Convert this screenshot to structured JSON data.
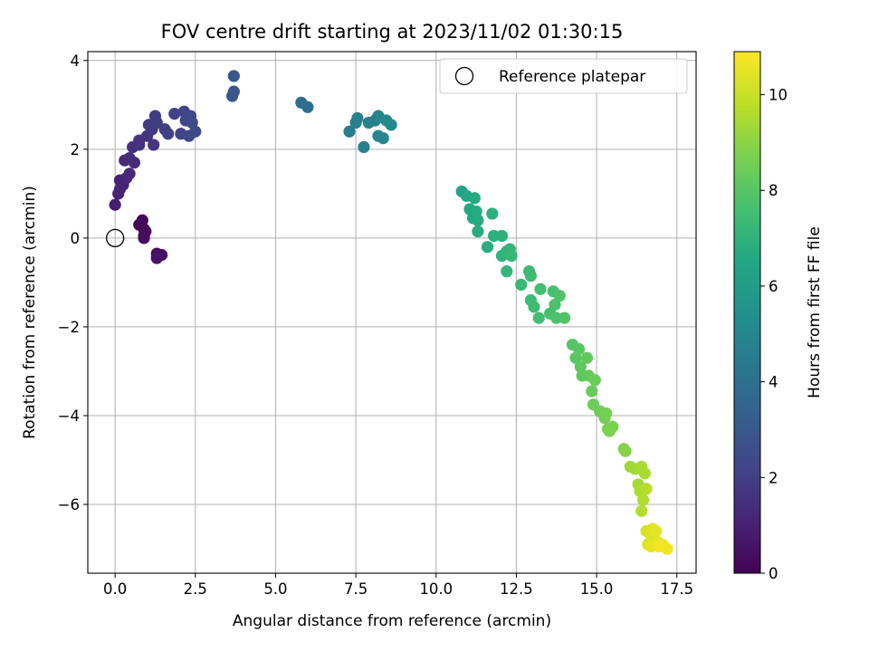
{
  "chart_data": {
    "type": "scatter",
    "title": "FOV centre drift starting at 2023/11/02 01:30:15",
    "xlabel": "Angular distance from reference (arcmin)",
    "ylabel": "Rotation from reference (arcmin)",
    "xlim": [
      -0.85,
      18.1
    ],
    "ylim": [
      -7.55,
      4.2
    ],
    "xticks": [
      0.0,
      2.5,
      5.0,
      7.5,
      10.0,
      12.5,
      15.0,
      17.5
    ],
    "xtick_labels": [
      "0.0",
      "2.5",
      "5.0",
      "7.5",
      "10.0",
      "12.5",
      "15.0",
      "17.5"
    ],
    "yticks": [
      -6,
      -4,
      -2,
      0,
      2,
      4
    ],
    "ytick_labels": [
      "−6",
      "−4",
      "−2",
      "0",
      "2",
      "4"
    ],
    "grid": true,
    "colorbar": {
      "label": "Hours from first FF file",
      "colormap": "viridis",
      "range": [
        0,
        10.9
      ],
      "ticks": [
        0,
        2,
        4,
        6,
        8,
        10
      ],
      "tick_labels": [
        "0",
        "2",
        "4",
        "6",
        "8",
        "10"
      ]
    },
    "legend": {
      "position": "top-right",
      "entries": [
        "Reference platepar"
      ]
    },
    "reference_point": {
      "x": 0.0,
      "y": 0.0
    },
    "points": [
      [
        0.9,
        0.2,
        0.1
      ],
      [
        0.85,
        0.4,
        0.15
      ],
      [
        0.9,
        0.05,
        0.2
      ],
      [
        0.75,
        0.3,
        0.25
      ],
      [
        0.95,
        0.15,
        0.3
      ],
      [
        0.9,
        0.0,
        0.35
      ],
      [
        1.3,
        -0.35,
        0.4
      ],
      [
        1.35,
        -0.4,
        0.45
      ],
      [
        1.45,
        -0.38,
        0.5
      ],
      [
        1.3,
        -0.45,
        0.55
      ],
      [
        0.0,
        0.75,
        0.9
      ],
      [
        0.1,
        1.0,
        1.0
      ],
      [
        0.15,
        1.3,
        1.05
      ],
      [
        0.25,
        1.2,
        1.1
      ],
      [
        0.15,
        1.1,
        1.15
      ],
      [
        0.35,
        1.35,
        1.2
      ],
      [
        0.45,
        1.45,
        1.25
      ],
      [
        0.3,
        1.75,
        1.3
      ],
      [
        0.45,
        1.8,
        1.35
      ],
      [
        0.6,
        1.7,
        1.4
      ],
      [
        0.55,
        2.05,
        1.5
      ],
      [
        0.75,
        2.1,
        1.55
      ],
      [
        0.75,
        2.2,
        1.6
      ],
      [
        1.0,
        2.3,
        1.65
      ],
      [
        1.2,
        2.1,
        1.7
      ],
      [
        1.15,
        2.45,
        1.8
      ],
      [
        1.05,
        2.55,
        1.85
      ],
      [
        1.25,
        2.75,
        1.9
      ],
      [
        1.3,
        2.6,
        1.95
      ],
      [
        1.55,
        2.45,
        2.0
      ],
      [
        1.65,
        2.35,
        2.05
      ],
      [
        1.85,
        2.8,
        2.1
      ],
      [
        2.05,
        2.35,
        2.15
      ],
      [
        2.15,
        2.85,
        2.2
      ],
      [
        2.2,
        2.65,
        2.3
      ],
      [
        2.35,
        2.75,
        2.35
      ],
      [
        2.3,
        2.3,
        2.4
      ],
      [
        2.5,
        2.4,
        2.45
      ],
      [
        2.4,
        2.6,
        2.5
      ],
      [
        3.65,
        3.2,
        2.9
      ],
      [
        3.7,
        3.3,
        2.95
      ],
      [
        3.7,
        3.65,
        3.0
      ],
      [
        5.8,
        3.05,
        3.9
      ],
      [
        6.0,
        2.95,
        3.95
      ],
      [
        7.3,
        2.4,
        4.6
      ],
      [
        7.5,
        2.6,
        4.65
      ],
      [
        7.55,
        2.7,
        4.7
      ],
      [
        7.75,
        2.05,
        4.75
      ],
      [
        7.9,
        2.6,
        4.8
      ],
      [
        8.1,
        2.65,
        4.85
      ],
      [
        8.2,
        2.75,
        4.9
      ],
      [
        8.2,
        2.3,
        4.95
      ],
      [
        8.35,
        2.25,
        5.0
      ],
      [
        8.45,
        2.65,
        5.05
      ],
      [
        8.6,
        2.55,
        5.1
      ],
      [
        10.8,
        1.05,
        6.4
      ],
      [
        10.95,
        0.95,
        6.45
      ],
      [
        11.05,
        0.65,
        6.5
      ],
      [
        11.15,
        0.45,
        6.55
      ],
      [
        11.2,
        0.9,
        6.6
      ],
      [
        11.25,
        0.6,
        6.65
      ],
      [
        11.3,
        0.4,
        6.7
      ],
      [
        11.3,
        0.15,
        6.75
      ],
      [
        11.6,
        -0.2,
        6.8
      ],
      [
        11.75,
        0.55,
        6.85
      ],
      [
        11.8,
        0.05,
        6.9
      ],
      [
        12.05,
        0.05,
        6.95
      ],
      [
        12.05,
        -0.4,
        7.0
      ],
      [
        12.2,
        -0.3,
        7.05
      ],
      [
        12.3,
        -0.25,
        7.1
      ],
      [
        12.2,
        -0.75,
        7.15
      ],
      [
        12.35,
        -0.4,
        7.2
      ],
      [
        12.65,
        -1.05,
        7.3
      ],
      [
        12.9,
        -0.75,
        7.35
      ],
      [
        12.95,
        -0.85,
        7.4
      ],
      [
        12.95,
        -1.4,
        7.45
      ],
      [
        13.05,
        -1.55,
        7.5
      ],
      [
        13.2,
        -1.8,
        7.55
      ],
      [
        13.25,
        -1.15,
        7.6
      ],
      [
        13.55,
        -1.7,
        7.65
      ],
      [
        13.65,
        -1.2,
        7.7
      ],
      [
        13.7,
        -1.5,
        7.75
      ],
      [
        13.75,
        -1.8,
        7.8
      ],
      [
        13.85,
        -1.3,
        7.85
      ],
      [
        14.0,
        -1.8,
        7.9
      ],
      [
        14.25,
        -2.4,
        8.0
      ],
      [
        14.35,
        -2.7,
        8.05
      ],
      [
        14.45,
        -2.5,
        8.1
      ],
      [
        14.5,
        -2.9,
        8.15
      ],
      [
        14.55,
        -3.1,
        8.2
      ],
      [
        14.7,
        -2.7,
        8.25
      ],
      [
        14.75,
        -3.1,
        8.3
      ],
      [
        14.85,
        -3.45,
        8.35
      ],
      [
        14.95,
        -3.2,
        8.4
      ],
      [
        14.9,
        -3.75,
        8.45
      ],
      [
        15.1,
        -3.9,
        8.5
      ],
      [
        15.25,
        -4.05,
        8.55
      ],
      [
        15.3,
        -3.95,
        8.6
      ],
      [
        15.35,
        -4.3,
        8.65
      ],
      [
        15.5,
        -4.25,
        8.7
      ],
      [
        15.4,
        -4.35,
        8.75
      ],
      [
        15.85,
        -4.75,
        8.85
      ],
      [
        15.9,
        -4.8,
        8.9
      ],
      [
        16.05,
        -5.15,
        9.3
      ],
      [
        16.2,
        -5.2,
        9.35
      ],
      [
        16.3,
        -5.55,
        9.4
      ],
      [
        16.4,
        -5.15,
        9.45
      ],
      [
        16.5,
        -5.3,
        9.5
      ],
      [
        16.35,
        -5.7,
        9.55
      ],
      [
        16.45,
        -5.9,
        9.6
      ],
      [
        16.4,
        -6.15,
        9.65
      ],
      [
        16.55,
        -5.65,
        9.7
      ],
      [
        16.55,
        -6.6,
        10.2
      ],
      [
        16.7,
        -6.7,
        10.3
      ],
      [
        16.6,
        -6.9,
        10.35
      ],
      [
        16.75,
        -6.55,
        10.4
      ],
      [
        16.85,
        -6.6,
        10.45
      ],
      [
        16.7,
        -6.95,
        10.5
      ],
      [
        16.9,
        -6.85,
        10.55
      ],
      [
        17.05,
        -6.9,
        10.6
      ],
      [
        17.2,
        -7.0,
        10.7
      ],
      [
        16.95,
        -6.95,
        10.75
      ]
    ]
  }
}
